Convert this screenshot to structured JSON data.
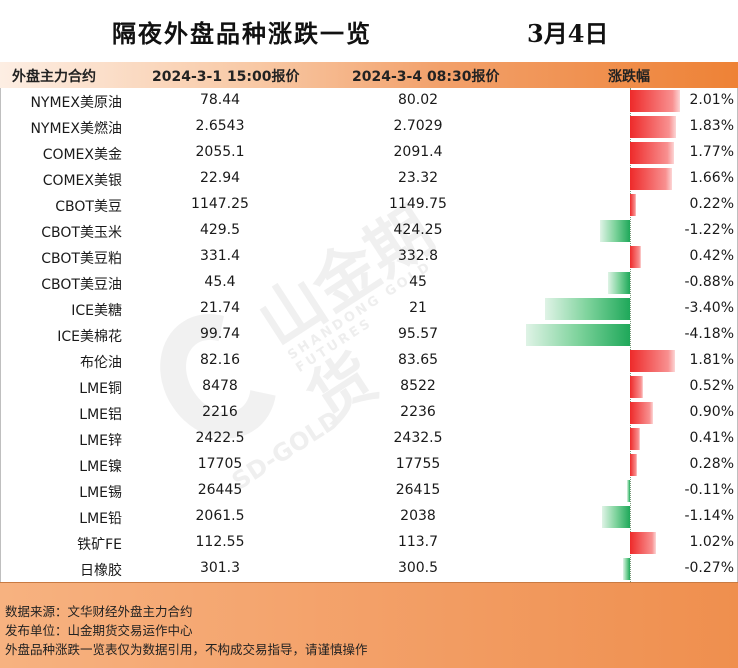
{
  "title": "隔夜外盘品种涨跌一览",
  "date": "3月4日",
  "headers": {
    "contract": "外盘主力合约",
    "price1": "2024-3-1 15:00报价",
    "price2": "2024-3-4 08:30报价",
    "change": "涨跌幅"
  },
  "watermark": {
    "brand": "山金期货",
    "sub": "SHANDONG GOLD FUTURES",
    "sd": "SD-GOLD"
  },
  "chart_data": {
    "type": "table",
    "colors": {
      "up": "#ee2a2a",
      "down": "#1fa85a"
    },
    "rows": [
      {
        "name": "NYMEX美原油",
        "p1": "78.44",
        "p2": "80.02",
        "pct_label": "2.01%",
        "pct": 2.01
      },
      {
        "name": "NYMEX美燃油",
        "p1": "2.6543",
        "p2": "2.7029",
        "pct_label": "1.83%",
        "pct": 1.83
      },
      {
        "name": "COMEX美金",
        "p1": "2055.1",
        "p2": "2091.4",
        "pct_label": "1.77%",
        "pct": 1.77
      },
      {
        "name": "COMEX美银",
        "p1": "22.94",
        "p2": "23.32",
        "pct_label": "1.66%",
        "pct": 1.66
      },
      {
        "name": "CBOT美豆",
        "p1": "1147.25",
        "p2": "1149.75",
        "pct_label": "0.22%",
        "pct": 0.22
      },
      {
        "name": "CBOT美玉米",
        "p1": "429.5",
        "p2": "424.25",
        "pct_label": "-1.22%",
        "pct": -1.22
      },
      {
        "name": "CBOT美豆粕",
        "p1": "331.4",
        "p2": "332.8",
        "pct_label": "0.42%",
        "pct": 0.42
      },
      {
        "name": "CBOT美豆油",
        "p1": "45.4",
        "p2": "45",
        "pct_label": "-0.88%",
        "pct": -0.88
      },
      {
        "name": "ICE美糖",
        "p1": "21.74",
        "p2": "21",
        "pct_label": "-3.40%",
        "pct": -3.4
      },
      {
        "name": "ICE美棉花",
        "p1": "99.74",
        "p2": "95.57",
        "pct_label": "-4.18%",
        "pct": -4.18
      },
      {
        "name": "布伦油",
        "p1": "82.16",
        "p2": "83.65",
        "pct_label": "1.81%",
        "pct": 1.81
      },
      {
        "name": "LME铜",
        "p1": "8478",
        "p2": "8522",
        "pct_label": "0.52%",
        "pct": 0.52
      },
      {
        "name": "LME铝",
        "p1": "2216",
        "p2": "2236",
        "pct_label": "0.90%",
        "pct": 0.9
      },
      {
        "name": "LME锌",
        "p1": "2422.5",
        "p2": "2432.5",
        "pct_label": "0.41%",
        "pct": 0.41
      },
      {
        "name": "LME镍",
        "p1": "17705",
        "p2": "17755",
        "pct_label": "0.28%",
        "pct": 0.28
      },
      {
        "name": "LME锡",
        "p1": "26445",
        "p2": "26415",
        "pct_label": "-0.11%",
        "pct": -0.11
      },
      {
        "name": "LME铅",
        "p1": "2061.5",
        "p2": "2038",
        "pct_label": "-1.14%",
        "pct": -1.14
      },
      {
        "name": "铁矿FE",
        "p1": "112.55",
        "p2": "113.7",
        "pct_label": "1.02%",
        "pct": 1.02
      },
      {
        "name": "日橡胶",
        "p1": "301.3",
        "p2": "300.5",
        "pct_label": "-0.27%",
        "pct": -0.27
      }
    ]
  },
  "footer": {
    "source": "数据来源：文华财经外盘主力合约",
    "publisher": "发布单位：山金期货交易运作中心",
    "disclaimer": "外盘品种涨跌一览表仅为数据引用，不构成交易指导，请谨慎操作"
  }
}
